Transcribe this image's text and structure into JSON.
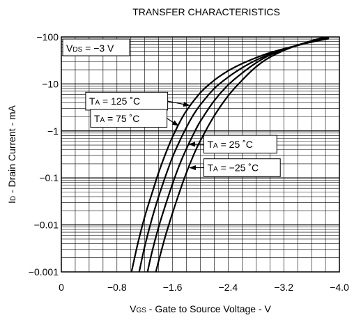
{
  "chart_data": {
    "type": "line",
    "title": "TRANSFER CHARACTERISTICS",
    "xlabel": {
      "main": "V",
      "sub": "GS",
      "rest": " - Gate to Source Voltage - V"
    },
    "ylabel": {
      "main": "I",
      "sub": "D",
      "rest": " - Drain Current - mA"
    },
    "x_scale": "linear",
    "y_scale": "log",
    "x_range": [
      0,
      -4.0
    ],
    "y_range": [
      -0.001,
      -100
    ],
    "x_ticks": [
      {
        "value": 0,
        "label": "0"
      },
      {
        "value": -0.8,
        "label": "−0.8"
      },
      {
        "value": -1.6,
        "label": "−1.6"
      },
      {
        "value": -2.4,
        "label": "−2.4"
      },
      {
        "value": -3.2,
        "label": "−3.2"
      },
      {
        "value": -4.0,
        "label": "−4.0"
      }
    ],
    "y_ticks": [
      {
        "value": -100,
        "label": "−100"
      },
      {
        "value": -10,
        "label": "−10"
      },
      {
        "value": -1,
        "label": "−1"
      },
      {
        "value": -0.1,
        "label": "−0.1"
      },
      {
        "value": -0.01,
        "label": "−0.01"
      },
      {
        "value": -0.001,
        "label": "−0.001"
      }
    ],
    "grid": true,
    "condition": {
      "main": "V",
      "sub": "DS",
      "rest": " = −3 V"
    },
    "series": [
      {
        "name": {
          "main": "T",
          "sub": "A",
          "rest": " = 125 ˚C"
        },
        "points": [
          [
            -1.01,
            -0.001
          ],
          [
            -1.1,
            -0.004
          ],
          [
            -1.2,
            -0.015
          ],
          [
            -1.3,
            -0.045
          ],
          [
            -1.4,
            -0.13
          ],
          [
            -1.5,
            -0.33
          ],
          [
            -1.6,
            -0.75
          ],
          [
            -1.7,
            -1.5
          ],
          [
            -1.8,
            -2.7
          ],
          [
            -2.0,
            -6.5
          ],
          [
            -2.2,
            -12
          ],
          [
            -2.4,
            -19
          ],
          [
            -2.6,
            -27
          ],
          [
            -2.8,
            -36
          ],
          [
            -3.0,
            -46
          ],
          [
            -3.3,
            -61
          ],
          [
            -3.6,
            -78
          ],
          [
            -3.85,
            -92
          ]
        ]
      },
      {
        "name": {
          "main": "T",
          "sub": "A",
          "rest": " = 75 ˚C"
        },
        "points": [
          [
            -1.12,
            -0.001
          ],
          [
            -1.2,
            -0.0035
          ],
          [
            -1.3,
            -0.013
          ],
          [
            -1.4,
            -0.04
          ],
          [
            -1.5,
            -0.11
          ],
          [
            -1.6,
            -0.28
          ],
          [
            -1.7,
            -0.6
          ],
          [
            -1.8,
            -1.2
          ],
          [
            -1.9,
            -2.2
          ],
          [
            -2.0,
            -3.6
          ],
          [
            -2.2,
            -8
          ],
          [
            -2.4,
            -14
          ],
          [
            -2.6,
            -22
          ],
          [
            -2.8,
            -32
          ],
          [
            -3.0,
            -43
          ],
          [
            -3.3,
            -60
          ],
          [
            -3.6,
            -79
          ],
          [
            -3.85,
            -95
          ]
        ]
      },
      {
        "name": {
          "main": "T",
          "sub": "A",
          "rest": " = 25 ˚C"
        },
        "points": [
          [
            -1.24,
            -0.001
          ],
          [
            -1.3,
            -0.0025
          ],
          [
            -1.4,
            -0.009
          ],
          [
            -1.5,
            -0.027
          ],
          [
            -1.6,
            -0.075
          ],
          [
            -1.7,
            -0.19
          ],
          [
            -1.8,
            -0.42
          ],
          [
            -1.9,
            -0.85
          ],
          [
            -2.0,
            -1.6
          ],
          [
            -2.2,
            -4.4
          ],
          [
            -2.4,
            -9.5
          ],
          [
            -2.6,
            -17
          ],
          [
            -2.8,
            -28
          ],
          [
            -3.0,
            -41
          ],
          [
            -3.3,
            -60
          ],
          [
            -3.6,
            -81
          ],
          [
            -3.85,
            -98
          ]
        ]
      },
      {
        "name": {
          "main": "T",
          "sub": "A",
          "rest": " = −25 ˚C"
        },
        "points": [
          [
            -1.36,
            -0.001
          ],
          [
            -1.4,
            -0.0017
          ],
          [
            -1.5,
            -0.006
          ],
          [
            -1.6,
            -0.018
          ],
          [
            -1.7,
            -0.05
          ],
          [
            -1.8,
            -0.13
          ],
          [
            -1.9,
            -0.3
          ],
          [
            -2.0,
            -0.62
          ],
          [
            -2.2,
            -2.1
          ],
          [
            -2.4,
            -5.6
          ],
          [
            -2.6,
            -12
          ],
          [
            -2.8,
            -23
          ],
          [
            -3.0,
            -37
          ],
          [
            -3.3,
            -59
          ],
          [
            -3.6,
            -83
          ],
          [
            -3.8,
            -100
          ]
        ]
      }
    ],
    "annotations": [
      {
        "series": 0,
        "box_x": -0.35,
        "box_y": -4.3,
        "box_w": 1.18,
        "box_h_decades": 0.38,
        "arrow_to_x": -1.84,
        "arrow_to_y": -3.5
      },
      {
        "series": 1,
        "box_x": -0.42,
        "box_y": -1.85,
        "box_w": 1.1,
        "box_h_decades": 0.38,
        "arrow_to_x": -1.68,
        "arrow_to_y": -1.3
      },
      {
        "series": 2,
        "box_x": -2.05,
        "box_y": -0.52,
        "box_w": 1.05,
        "box_h_decades": 0.38,
        "arrow_to_x": -1.84,
        "arrow_to_y": -0.52
      },
      {
        "series": 3,
        "box_x": -2.05,
        "box_y": -0.165,
        "box_w": 1.1,
        "box_h_decades": 0.38,
        "arrow_to_x": -1.85,
        "arrow_to_y": -0.165
      }
    ]
  }
}
